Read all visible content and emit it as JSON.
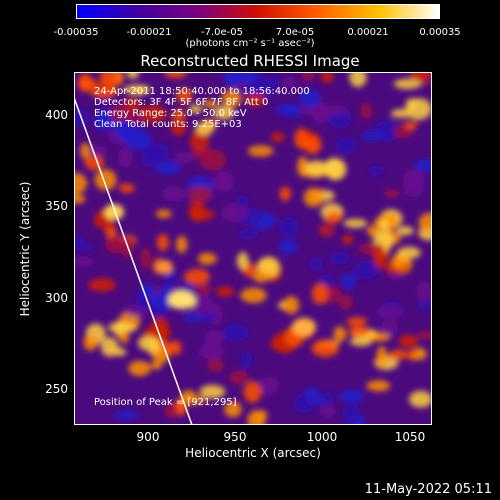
{
  "colorbar": {
    "tick_labels": [
      "-0.00035",
      "-0.00021",
      "-7.0e-05",
      "7.0e-05",
      "0.00021",
      "0.00035"
    ],
    "units": "(photons cm⁻² s⁻¹ asec⁻²)",
    "gradient": [
      "#0000ff",
      "#4000a0",
      "#7a0080",
      "#d01000",
      "#ff6000",
      "#ffc000",
      "#ffffff"
    ]
  },
  "title": "Reconstructed RHESSI Image",
  "info_lines": [
    "24-Apr-2011 18:50:40.000 to 18:56:40.000",
    "Detectors: 3F 4F 5F 6F 7F 8F, Att 0",
    "Energy Range: 25.0 - 50.0 keV",
    "Clean     Total counts: 9.25E+03"
  ],
  "peak_text": "Position of Peak = [921,295]",
  "axes": {
    "xlabel": "Heliocentric X (arcsec)",
    "ylabel": "Heliocentric Y (arcsec)",
    "xticks": [
      "900",
      "950",
      "1000",
      "1050"
    ],
    "yticks": [
      "400",
      "350",
      "300",
      "250"
    ]
  },
  "footer": "11-May-2022 05:11"
}
